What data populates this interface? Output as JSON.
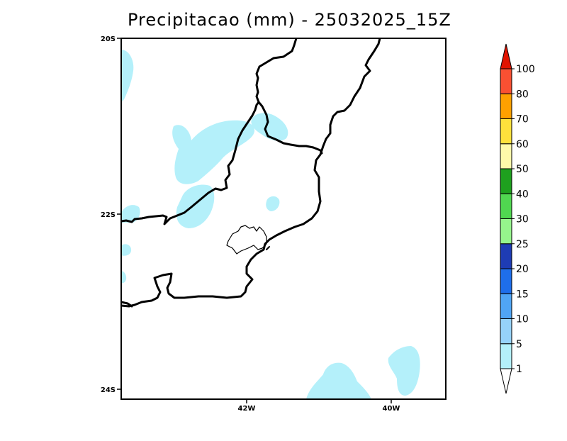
{
  "title": "Precipitacao (mm) - 25032025_15Z",
  "axes": {
    "lat_labels": [
      "20S",
      "22S",
      "24S"
    ],
    "lon_labels": [
      "42W",
      "40W"
    ]
  },
  "colorbar": {
    "labels": [
      "1",
      "5",
      "10",
      "15",
      "20",
      "25",
      "30",
      "40",
      "50",
      "60",
      "70",
      "80",
      "100"
    ],
    "colors": [
      "#b4f0fa",
      "#96d2fa",
      "#50a5f5",
      "#1e6eeb",
      "#1e3cb4",
      "#96f58c",
      "#50d750",
      "#1ea01e",
      "#fffaaa",
      "#ffe13c",
      "#ffa000",
      "#fa5032",
      "#e11400"
    ],
    "under_color": "#ffffff",
    "over_color": "#e11400"
  },
  "map": {
    "precip_fill_color": "#b4f0fa"
  }
}
